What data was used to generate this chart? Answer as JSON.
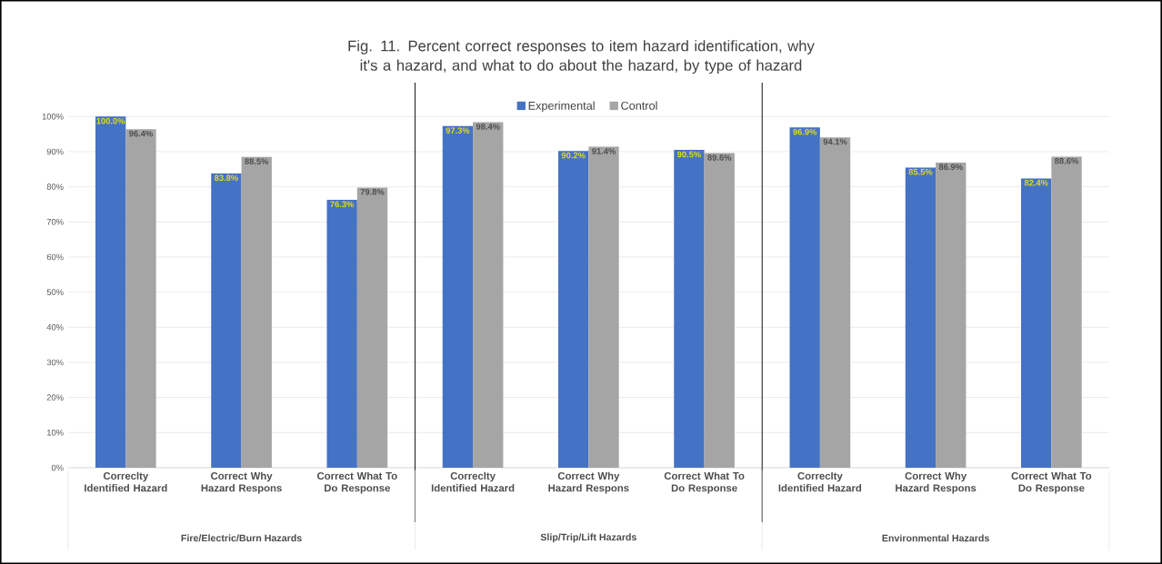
{
  "chart_data": {
    "type": "bar",
    "title": "Fig. 11. Percent correct responses to item hazard identification, why it's a hazard, and what to do about the hazard, by type of hazard",
    "categories": [
      "Correclty Identified Hazard",
      "Correct Why Hazard Respons",
      "Correct What To Do Response",
      "Correclty Identified Hazard",
      "Correct Why Hazard Respons",
      "Correct What To Do Response",
      "Correclty Identified Hazard",
      "Correct Why Hazard Respons",
      "Correct What To Do Response"
    ],
    "series": [
      {
        "name": "Experimental",
        "color": "#4472c4",
        "values": [
          100.0,
          83.8,
          76.3,
          97.3,
          90.2,
          90.5,
          96.9,
          85.5,
          82.4
        ],
        "value_labels": [
          "100.0%",
          "83.8%",
          "76.3%",
          "97.3%",
          "90.2%",
          "90.5%",
          "96.9%",
          "85.5%",
          "82.4%"
        ]
      },
      {
        "name": "Control",
        "color": "#a5a5a5",
        "values": [
          96.4,
          88.5,
          79.8,
          98.4,
          91.4,
          89.6,
          94.1,
          86.9,
          88.6
        ],
        "value_labels": [
          "96.4%",
          "88.5%",
          "79.8%",
          "98.4%",
          "91.4%",
          "89.6%",
          "94.1%",
          "86.9%",
          "88.6%"
        ]
      }
    ],
    "ylim": [
      0,
      100
    ],
    "yticks": [
      {
        "value": 0,
        "label": "0%"
      },
      {
        "value": 10,
        "label": "10%"
      },
      {
        "value": 20,
        "label": "20%"
      },
      {
        "value": 30,
        "label": "30%"
      },
      {
        "value": 40,
        "label": "40%"
      },
      {
        "value": 50,
        "label": "50%"
      },
      {
        "value": 60,
        "label": "60%"
      },
      {
        "value": 70,
        "label": "70%"
      },
      {
        "value": 80,
        "label": "80%"
      },
      {
        "value": 90,
        "label": "90%"
      },
      {
        "value": 100,
        "label": "100%"
      }
    ],
    "annotations": [
      "Fire/Electric/Burn Hazards",
      "Slip/Trip/Lift Hazards",
      "Environmental Hazards"
    ],
    "grid": "y",
    "legend": "top"
  }
}
